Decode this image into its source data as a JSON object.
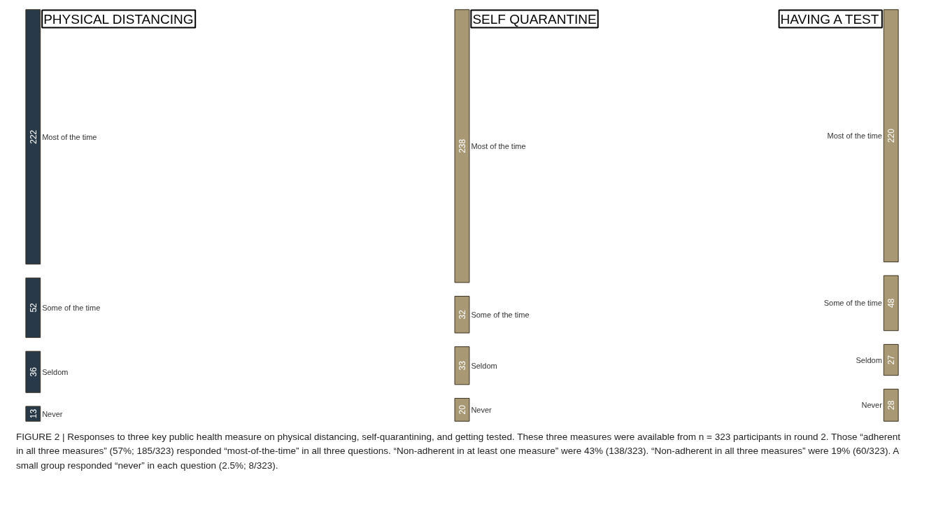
{
  "chart_data": {
    "type": "other",
    "categories": [
      "Most of the time",
      "Some of the time",
      "Seldom",
      "Never"
    ],
    "series": [
      {
        "name": "PHYSICAL DISTANCING",
        "color": "#283a4a",
        "values": [
          222,
          52,
          36,
          13
        ]
      },
      {
        "name": "SELF QUARANTINE",
        "color": "#a89874",
        "values": [
          238,
          32,
          33,
          20
        ]
      },
      {
        "name": "HAVING A TEST",
        "color": "#a89874",
        "values": [
          220,
          48,
          27,
          28
        ]
      }
    ],
    "data_labels": true,
    "annotations": [
      "FIGURE 2 | Responses to three key public health measure on physical distancing, self-quarantining, and getting tested. These three measures were available from n = 323 participants in round 2. Those “adherent in all three measures” (57%; 185/323) responded “most-of-the-time” in all three questions. “Non-adherent in at least one measure” were 43% (138/323). “Non-adherent in all three measures” were 19% (60/323). A small group responded “never” in each question (2.5%; 8/323)."
    ]
  }
}
